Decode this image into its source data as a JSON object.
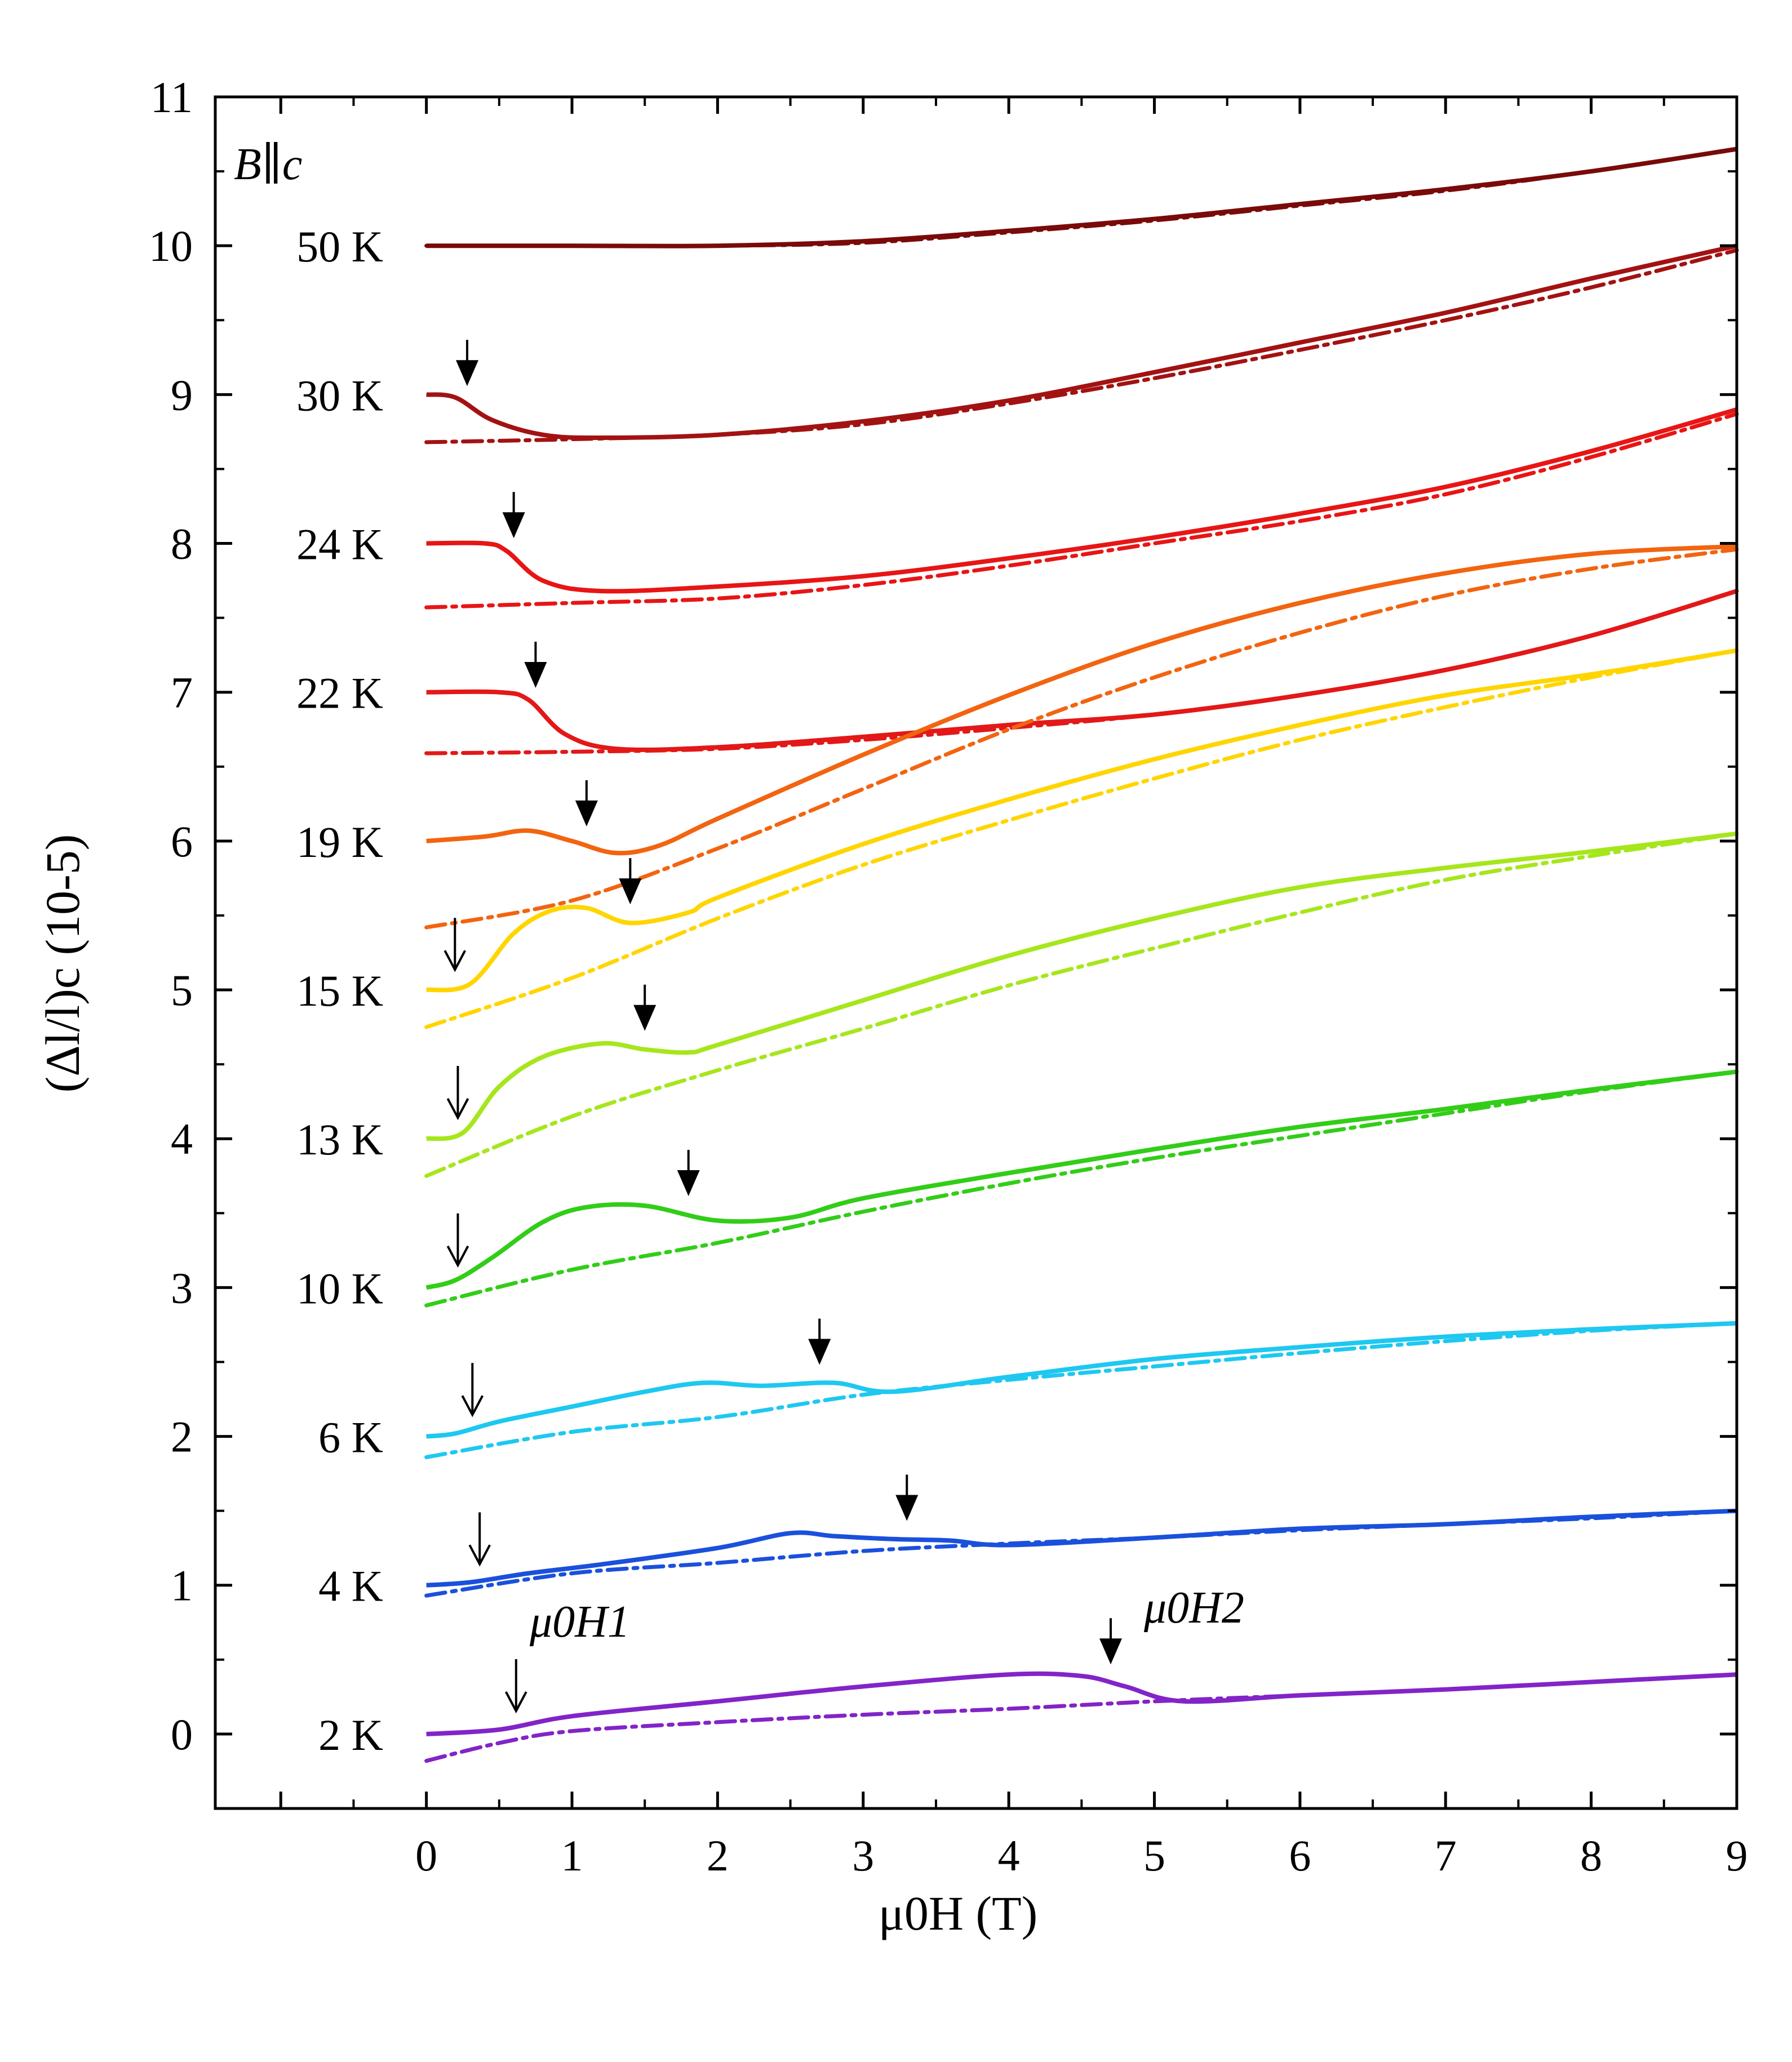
{
  "chart_data": {
    "type": "line",
    "xlabel": "μ0H (T)",
    "ylabel": "(Δl/l)c (10-5)",
    "xlim": [
      -1.45,
      9
    ],
    "ylim": [
      -0.5,
      11
    ],
    "xticks": [
      0,
      1,
      2,
      3,
      4,
      5,
      6,
      7,
      8,
      9
    ],
    "yticks": [
      0,
      1,
      2,
      3,
      4,
      5,
      6,
      7,
      8,
      9,
      10,
      11
    ],
    "field_annotation": "B∥c",
    "h1_label": "μ0H1",
    "h2_label": "μ0H2",
    "series": [
      {
        "name": "50 K",
        "offset": 10,
        "color": "#7a0a0a",
        "up": [
          [
            0,
            10.0
          ],
          [
            1,
            10.0
          ],
          [
            2,
            10.0
          ],
          [
            3,
            10.03
          ],
          [
            4,
            10.1
          ],
          [
            5,
            10.18
          ],
          [
            6,
            10.28
          ],
          [
            7,
            10.38
          ],
          [
            8,
            10.5
          ],
          [
            9,
            10.65
          ]
        ],
        "down": [
          [
            0,
            10.0
          ],
          [
            1,
            10.0
          ],
          [
            2,
            10.0
          ],
          [
            3,
            10.02
          ],
          [
            4,
            10.09
          ],
          [
            5,
            10.17
          ],
          [
            6,
            10.27
          ],
          [
            7,
            10.37
          ],
          [
            8,
            10.5
          ],
          [
            9,
            10.65
          ]
        ],
        "h1": null,
        "h2": null
      },
      {
        "name": "30 K",
        "offset": 9,
        "color": "#a31212",
        "up": [
          [
            0,
            9.0
          ],
          [
            0.2,
            8.98
          ],
          [
            0.45,
            8.83
          ],
          [
            0.8,
            8.73
          ],
          [
            1.2,
            8.71
          ],
          [
            2,
            8.73
          ],
          [
            3,
            8.82
          ],
          [
            4,
            8.96
          ],
          [
            5,
            9.15
          ],
          [
            6,
            9.35
          ],
          [
            7,
            9.55
          ],
          [
            8,
            9.78
          ],
          [
            9,
            10.0
          ]
        ],
        "down": [
          [
            0,
            8.68
          ],
          [
            1,
            8.7
          ],
          [
            2,
            8.73
          ],
          [
            3,
            8.8
          ],
          [
            4,
            8.94
          ],
          [
            5,
            9.11
          ],
          [
            6,
            9.3
          ],
          [
            7,
            9.5
          ],
          [
            8,
            9.72
          ],
          [
            9,
            9.97
          ]
        ],
        "h1": null,
        "h2": 0.28
      },
      {
        "name": "24 K",
        "offset": 8,
        "color": "#e81515",
        "up": [
          [
            0,
            8.0
          ],
          [
            0.4,
            8.0
          ],
          [
            0.55,
            7.95
          ],
          [
            0.8,
            7.75
          ],
          [
            1.2,
            7.68
          ],
          [
            2,
            7.71
          ],
          [
            3,
            7.78
          ],
          [
            4,
            7.9
          ],
          [
            5,
            8.04
          ],
          [
            6,
            8.2
          ],
          [
            7,
            8.38
          ],
          [
            8,
            8.62
          ],
          [
            9,
            8.9
          ]
        ],
        "down": [
          [
            0,
            7.57
          ],
          [
            1,
            7.6
          ],
          [
            2,
            7.63
          ],
          [
            3,
            7.72
          ],
          [
            4,
            7.85
          ],
          [
            5,
            8.0
          ],
          [
            6,
            8.15
          ],
          [
            7,
            8.33
          ],
          [
            8,
            8.58
          ],
          [
            9,
            8.87
          ]
        ],
        "h1": null,
        "h2": 0.6
      },
      {
        "name": "22 K",
        "offset": 7,
        "color": "#e31818",
        "up": [
          [
            0,
            7.0
          ],
          [
            0.5,
            7.0
          ],
          [
            0.7,
            6.95
          ],
          [
            0.95,
            6.72
          ],
          [
            1.3,
            6.62
          ],
          [
            2,
            6.63
          ],
          [
            3,
            6.7
          ],
          [
            4,
            6.78
          ],
          [
            5,
            6.85
          ],
          [
            6,
            6.98
          ],
          [
            7,
            7.15
          ],
          [
            8,
            7.38
          ],
          [
            9,
            7.68
          ]
        ],
        "down": [
          [
            0,
            6.59
          ],
          [
            1,
            6.6
          ],
          [
            2,
            6.62
          ],
          [
            3,
            6.68
          ],
          [
            4,
            6.76
          ],
          [
            5,
            6.85
          ],
          [
            6,
            6.98
          ],
          [
            7,
            7.15
          ],
          [
            8,
            7.38
          ],
          [
            9,
            7.68
          ]
        ],
        "h1": null,
        "h2": 0.75
      },
      {
        "name": "19 K",
        "offset": 6,
        "color": "#f26410",
        "up": [
          [
            0,
            6.0
          ],
          [
            0.4,
            6.03
          ],
          [
            0.7,
            6.07
          ],
          [
            1.0,
            6.0
          ],
          [
            1.3,
            5.92
          ],
          [
            1.6,
            5.97
          ],
          [
            2,
            6.15
          ],
          [
            3,
            6.58
          ],
          [
            4,
            6.98
          ],
          [
            5,
            7.33
          ],
          [
            6,
            7.6
          ],
          [
            7,
            7.8
          ],
          [
            8,
            7.93
          ],
          [
            9,
            7.98
          ]
        ],
        "down": [
          [
            0,
            5.42
          ],
          [
            1,
            5.6
          ],
          [
            2,
            5.95
          ],
          [
            3,
            6.35
          ],
          [
            4,
            6.75
          ],
          [
            5,
            7.1
          ],
          [
            6,
            7.4
          ],
          [
            7,
            7.65
          ],
          [
            8,
            7.83
          ],
          [
            9,
            7.96
          ]
        ],
        "h1": null,
        "h2": 1.1
      },
      {
        "name": "15 K",
        "offset": 5,
        "color": "#ffd500",
        "up": [
          [
            0,
            5.0
          ],
          [
            0.3,
            5.04
          ],
          [
            0.6,
            5.38
          ],
          [
            0.85,
            5.53
          ],
          [
            1.1,
            5.55
          ],
          [
            1.4,
            5.45
          ],
          [
            1.8,
            5.52
          ],
          [
            2,
            5.62
          ],
          [
            3,
            5.98
          ],
          [
            4,
            6.28
          ],
          [
            5,
            6.55
          ],
          [
            6,
            6.78
          ],
          [
            7,
            6.98
          ],
          [
            8,
            7.12
          ],
          [
            9,
            7.28
          ]
        ],
        "down": [
          [
            0,
            4.75
          ],
          [
            1,
            5.08
          ],
          [
            2,
            5.48
          ],
          [
            3,
            5.84
          ],
          [
            4,
            6.14
          ],
          [
            5,
            6.42
          ],
          [
            6,
            6.68
          ],
          [
            7,
            6.9
          ],
          [
            8,
            7.1
          ],
          [
            9,
            7.28
          ]
        ],
        "h1": 0.08,
        "h2": 1.4
      },
      {
        "name": "13 K",
        "offset": 4,
        "color": "#a6e61c",
        "up": [
          [
            0,
            4.0
          ],
          [
            0.25,
            4.04
          ],
          [
            0.5,
            4.35
          ],
          [
            0.8,
            4.55
          ],
          [
            1.2,
            4.64
          ],
          [
            1.5,
            4.6
          ],
          [
            1.8,
            4.58
          ],
          [
            2,
            4.63
          ],
          [
            3,
            4.93
          ],
          [
            4,
            5.23
          ],
          [
            5,
            5.48
          ],
          [
            6,
            5.69
          ],
          [
            7,
            5.82
          ],
          [
            8,
            5.93
          ],
          [
            9,
            6.05
          ]
        ],
        "down": [
          [
            0,
            3.75
          ],
          [
            1,
            4.15
          ],
          [
            2,
            4.46
          ],
          [
            3,
            4.74
          ],
          [
            4,
            5.03
          ],
          [
            5,
            5.28
          ],
          [
            6,
            5.52
          ],
          [
            7,
            5.74
          ],
          [
            8,
            5.9
          ],
          [
            9,
            6.05
          ]
        ],
        "h1": 0.1,
        "h2": 1.5
      },
      {
        "name": "10 K",
        "offset": 3,
        "color": "#32cd18",
        "up": [
          [
            0,
            3.0
          ],
          [
            0.2,
            3.05
          ],
          [
            0.45,
            3.2
          ],
          [
            0.8,
            3.44
          ],
          [
            1.1,
            3.54
          ],
          [
            1.5,
            3.55
          ],
          [
            2,
            3.45
          ],
          [
            2.5,
            3.47
          ],
          [
            3,
            3.6
          ],
          [
            4,
            3.77
          ],
          [
            5,
            3.93
          ],
          [
            6,
            4.08
          ],
          [
            7,
            4.2
          ],
          [
            8,
            4.33
          ],
          [
            9,
            4.45
          ]
        ],
        "down": [
          [
            0,
            2.88
          ],
          [
            1,
            3.12
          ],
          [
            2,
            3.3
          ],
          [
            3,
            3.51
          ],
          [
            4,
            3.7
          ],
          [
            5,
            3.87
          ],
          [
            6,
            4.02
          ],
          [
            7,
            4.17
          ],
          [
            8,
            4.32
          ],
          [
            9,
            4.45
          ]
        ],
        "h1": 0.1,
        "h2": 1.8
      },
      {
        "name": "6 K",
        "offset": 2,
        "color": "#1ec8f0",
        "up": [
          [
            0,
            2.0
          ],
          [
            0.2,
            2.02
          ],
          [
            0.5,
            2.1
          ],
          [
            1,
            2.2
          ],
          [
            1.5,
            2.3
          ],
          [
            1.9,
            2.36
          ],
          [
            2.3,
            2.34
          ],
          [
            2.8,
            2.36
          ],
          [
            3.2,
            2.3
          ],
          [
            4,
            2.4
          ],
          [
            5,
            2.52
          ],
          [
            6,
            2.6
          ],
          [
            7,
            2.67
          ],
          [
            8,
            2.72
          ],
          [
            9,
            2.76
          ]
        ],
        "down": [
          [
            0,
            1.86
          ],
          [
            1,
            2.03
          ],
          [
            2,
            2.13
          ],
          [
            3,
            2.28
          ],
          [
            4,
            2.38
          ],
          [
            5,
            2.47
          ],
          [
            6,
            2.56
          ],
          [
            7,
            2.64
          ],
          [
            8,
            2.71
          ],
          [
            9,
            2.76
          ]
        ],
        "h1": 0.2,
        "h2": 2.7
      },
      {
        "name": "4 K",
        "offset": 1,
        "color": "#1a50dc",
        "up": [
          [
            0,
            1.0
          ],
          [
            0.3,
            1.02
          ],
          [
            0.7,
            1.08
          ],
          [
            1.2,
            1.14
          ],
          [
            2,
            1.25
          ],
          [
            2.5,
            1.35
          ],
          [
            2.8,
            1.33
          ],
          [
            3.2,
            1.31
          ],
          [
            3.6,
            1.3
          ],
          [
            4,
            1.27
          ],
          [
            5,
            1.32
          ],
          [
            6,
            1.38
          ],
          [
            7,
            1.41
          ],
          [
            8,
            1.46
          ],
          [
            9,
            1.5
          ]
        ],
        "down": [
          [
            0,
            0.93
          ],
          [
            1,
            1.08
          ],
          [
            2,
            1.15
          ],
          [
            3,
            1.23
          ],
          [
            4,
            1.28
          ],
          [
            5,
            1.32
          ],
          [
            6,
            1.37
          ],
          [
            7,
            1.41
          ],
          [
            8,
            1.45
          ],
          [
            9,
            1.5
          ]
        ],
        "h1": 0.25,
        "h2": 3.3
      },
      {
        "name": "2 K",
        "offset": 0,
        "color": "#8224c8",
        "up": [
          [
            0,
            0.0
          ],
          [
            0.5,
            0.03
          ],
          [
            1,
            0.12
          ],
          [
            2,
            0.22
          ],
          [
            3,
            0.32
          ],
          [
            4,
            0.4
          ],
          [
            4.5,
            0.39
          ],
          [
            4.8,
            0.32
          ],
          [
            5.2,
            0.22
          ],
          [
            6,
            0.26
          ],
          [
            7,
            0.3
          ],
          [
            8,
            0.35
          ],
          [
            9,
            0.4
          ]
        ],
        "down": [
          [
            0,
            -0.18
          ],
          [
            0.5,
            -0.06
          ],
          [
            1,
            0.02
          ],
          [
            2,
            0.08
          ],
          [
            3,
            0.13
          ],
          [
            4,
            0.17
          ],
          [
            5,
            0.22
          ],
          [
            6,
            0.26
          ],
          [
            7,
            0.3
          ],
          [
            8,
            0.35
          ],
          [
            9,
            0.4
          ]
        ],
        "h1": 0.5,
        "h2": 4.7
      }
    ]
  }
}
